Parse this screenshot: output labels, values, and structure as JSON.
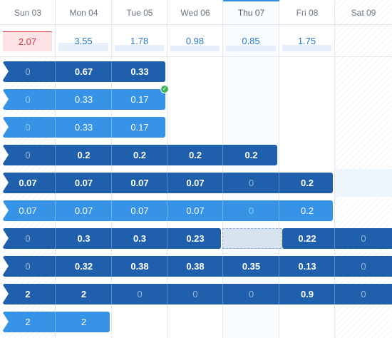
{
  "days": [
    "Sun 03",
    "Mon 04",
    "Tue 05",
    "Wed 06",
    "Thu 07",
    "Fri 08",
    "Sat 09"
  ],
  "today_index": 4,
  "weekend_indexes": [
    0,
    6
  ],
  "totals": [
    {
      "value": "2.07",
      "over": true,
      "load": 1.0
    },
    {
      "value": "3.55",
      "over": false,
      "load": 0.6
    },
    {
      "value": "1.78",
      "over": false,
      "load": 0.35
    },
    {
      "value": "0.98",
      "over": false,
      "load": 0.3
    },
    {
      "value": "0.85",
      "over": false,
      "load": 0.3
    },
    {
      "value": "1.75",
      "over": false,
      "load": 0.35
    },
    {
      "value": "",
      "over": false,
      "load": 0
    }
  ],
  "rows": [
    {
      "shade": "dark",
      "values": [
        "0",
        "0.67",
        "0.33"
      ]
    },
    {
      "shade": "light",
      "values": [
        "0",
        "0.33",
        "0.17"
      ],
      "check": true
    },
    {
      "shade": "light",
      "values": [
        "0",
        "0.33",
        "0.17"
      ]
    },
    {
      "shade": "dark",
      "values": [
        "0",
        "0.2",
        "0.2",
        "0.2",
        "0.2"
      ]
    },
    {
      "shade": "dark",
      "values": [
        "0.07",
        "0.07",
        "0.07",
        "0.07",
        "0",
        "0.2"
      ],
      "hover_after": true
    },
    {
      "shade": "light",
      "values": [
        "0.07",
        "0.07",
        "0.07",
        "0.07",
        "0",
        "0.2"
      ]
    },
    {
      "shade": "dark",
      "values": [
        "0",
        "0.3",
        "0.3",
        "0.23",
        "",
        "0.22",
        "0"
      ],
      "gap_index": 4,
      "continues": true
    },
    {
      "shade": "dark",
      "values": [
        "0",
        "0.32",
        "0.38",
        "0.38",
        "0.35",
        "0.13",
        "0"
      ],
      "continues": true
    },
    {
      "shade": "dark",
      "values": [
        "2",
        "2",
        "0",
        "0",
        "0",
        "0.9",
        "0"
      ],
      "continues": true
    },
    {
      "shade": "light",
      "values": [
        "2",
        "2"
      ]
    }
  ],
  "colors": {
    "bar_dark": "#1f5fac",
    "bar_light": "#3693e6",
    "over_text": "#d23740",
    "today_accent": "#2e8fe0",
    "check": "#3ab35b"
  },
  "icons": {
    "check": "check-icon"
  }
}
